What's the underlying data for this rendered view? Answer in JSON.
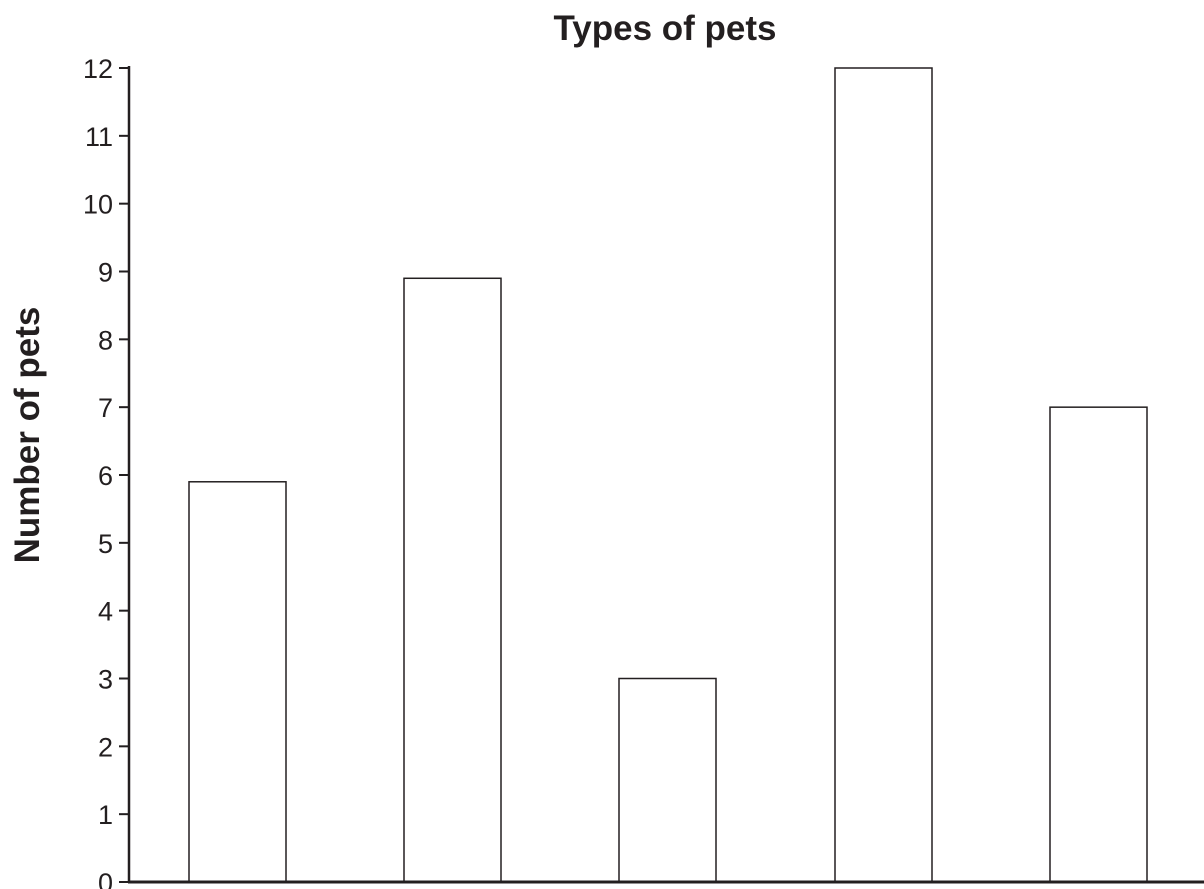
{
  "chart_data": {
    "type": "bar",
    "title": "Types of pets",
    "xlabel": "",
    "ylabel": "Number of pets",
    "categories": [
      "",
      "",
      "",
      "",
      ""
    ],
    "values": [
      5.9,
      8.9,
      3,
      12,
      7
    ],
    "ylim": [
      0,
      12
    ],
    "yticks": [
      "0",
      "1",
      "2",
      "3",
      "4",
      "5",
      "6",
      "7",
      "8",
      "9",
      "10",
      "11",
      "12"
    ],
    "grid": false,
    "legend": "none",
    "colors": {
      "bar_fill": "#ffffff",
      "bar_stroke": "#231f20",
      "axis": "#231f20",
      "text": "#231f20"
    }
  }
}
